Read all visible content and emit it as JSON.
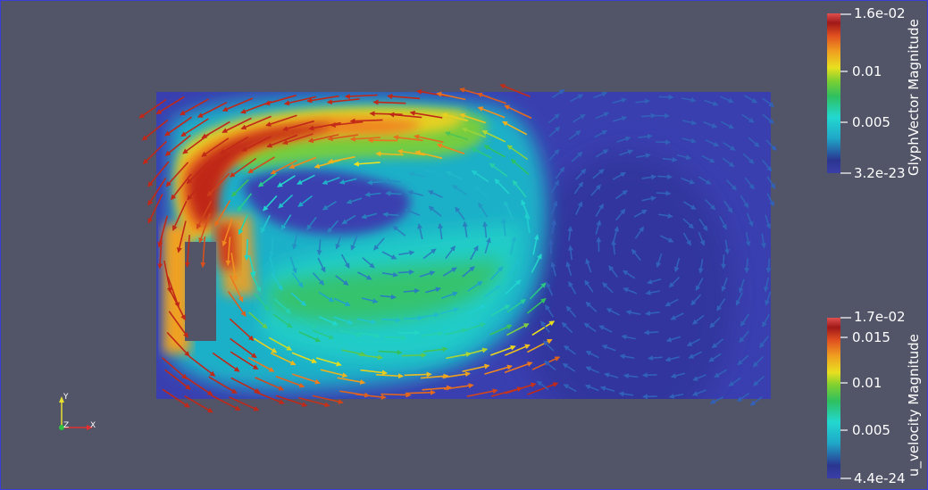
{
  "colorbar_top": {
    "title": "GlyphVector Magnitude",
    "labels": [
      "1.6e-02",
      "0.01",
      "0.005",
      "3.2e-23"
    ]
  },
  "colorbar_bottom": {
    "title": "u_velocity Magnitude",
    "labels": [
      "1.7e-02",
      "0.015",
      "0.01",
      "0.005",
      "4.4e-24"
    ]
  },
  "orientation_axes": {
    "x_label": "X",
    "y_label": "Y",
    "z_label": "Z",
    "colors": {
      "x": "#e03030",
      "y": "#e8e030",
      "z": "#30c040"
    }
  },
  "colors": {
    "background": "#525468",
    "border": "#3a3dd6",
    "domain_low": "#3a3fb0"
  }
}
